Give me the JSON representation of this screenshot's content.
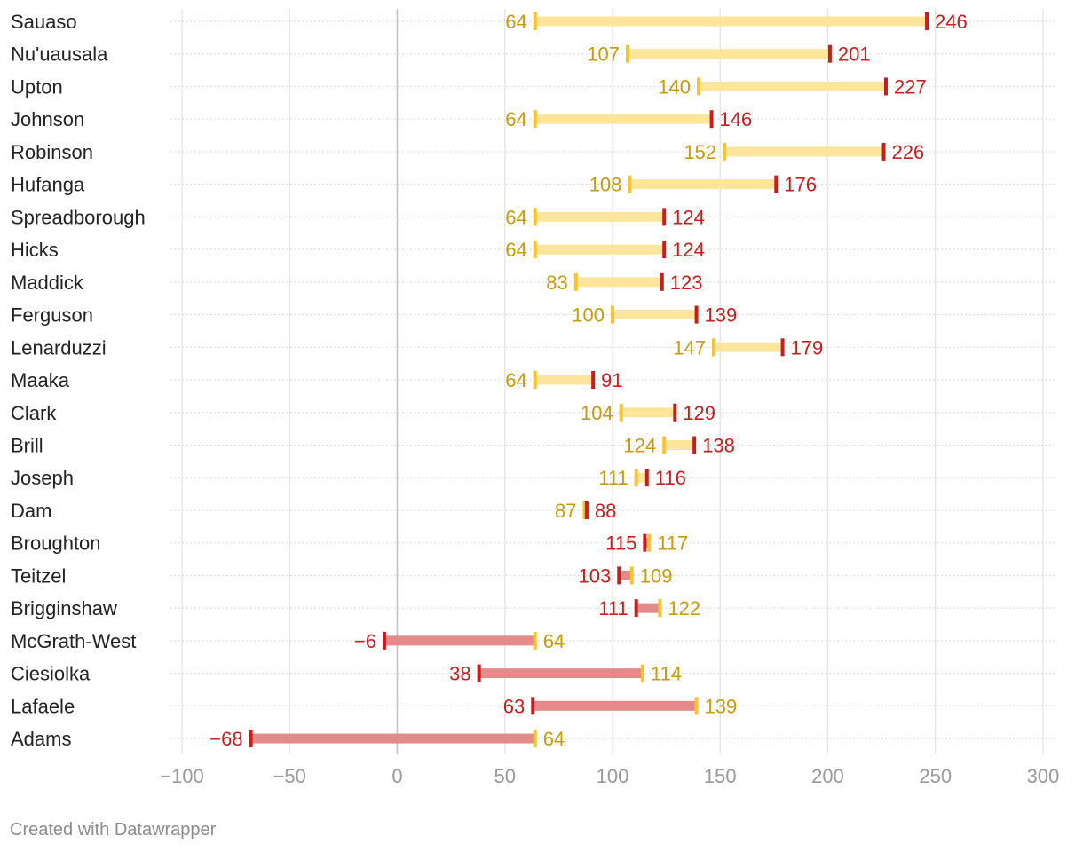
{
  "chart_data": {
    "type": "range",
    "title": "",
    "xlabel": "",
    "ylabel": "",
    "xlim": [
      -100,
      300
    ],
    "xticks": [
      -100,
      -50,
      0,
      50,
      100,
      150,
      200,
      250,
      300
    ],
    "xtick_labels": [
      "−100",
      "−50",
      "0",
      "50",
      "100",
      "150",
      "200",
      "250",
      "300"
    ],
    "grid": true,
    "colors": {
      "start": "#f7c331",
      "end": "#c71e1d",
      "start_text": "#c79b0f",
      "end_text": "#c71e1d",
      "bar_increase": "#fde69b",
      "bar_decrease": "#e58a8a"
    },
    "rows": [
      {
        "label": "Sauaso",
        "start": 64,
        "end": 246,
        "start_label": "64",
        "end_label": "246"
      },
      {
        "label": "Nu'uausala",
        "start": 107,
        "end": 201,
        "start_label": "107",
        "end_label": "201"
      },
      {
        "label": "Upton",
        "start": 140,
        "end": 227,
        "start_label": "140",
        "end_label": "227"
      },
      {
        "label": "Johnson",
        "start": 64,
        "end": 146,
        "start_label": "64",
        "end_label": "146"
      },
      {
        "label": "Robinson",
        "start": 152,
        "end": 226,
        "start_label": "152",
        "end_label": "226"
      },
      {
        "label": "Hufanga",
        "start": 108,
        "end": 176,
        "start_label": "108",
        "end_label": "176"
      },
      {
        "label": "Spreadborough",
        "start": 64,
        "end": 124,
        "start_label": "64",
        "end_label": "124"
      },
      {
        "label": "Hicks",
        "start": 64,
        "end": 124,
        "start_label": "64",
        "end_label": "124"
      },
      {
        "label": "Maddick",
        "start": 83,
        "end": 123,
        "start_label": "83",
        "end_label": "123"
      },
      {
        "label": "Ferguson",
        "start": 100,
        "end": 139,
        "start_label": "100",
        "end_label": "139"
      },
      {
        "label": "Lenarduzzi",
        "start": 147,
        "end": 179,
        "start_label": "147",
        "end_label": "179"
      },
      {
        "label": "Maaka",
        "start": 64,
        "end": 91,
        "start_label": "64",
        "end_label": "91"
      },
      {
        "label": "Clark",
        "start": 104,
        "end": 129,
        "start_label": "104",
        "end_label": "129"
      },
      {
        "label": "Brill",
        "start": 124,
        "end": 138,
        "start_label": "124",
        "end_label": "138"
      },
      {
        "label": "Joseph",
        "start": 111,
        "end": 116,
        "start_label": "111",
        "end_label": "116"
      },
      {
        "label": "Dam",
        "start": 87,
        "end": 88,
        "start_label": "87",
        "end_label": "88"
      },
      {
        "label": "Broughton",
        "start": 117,
        "end": 115,
        "start_label": "117",
        "end_label": "115"
      },
      {
        "label": "Teitzel",
        "start": 109,
        "end": 103,
        "start_label": "109",
        "end_label": "103"
      },
      {
        "label": "Brigginshaw",
        "start": 122,
        "end": 111,
        "start_label": "122",
        "end_label": "111"
      },
      {
        "label": "McGrath-West",
        "start": 64,
        "end": -6,
        "start_label": "64",
        "end_label": "−6"
      },
      {
        "label": "Ciesiolka",
        "start": 114,
        "end": 38,
        "start_label": "114",
        "end_label": "38"
      },
      {
        "label": "Lafaele",
        "start": 139,
        "end": 63,
        "start_label": "139",
        "end_label": "63"
      },
      {
        "label": "Adams",
        "start": 64,
        "end": -68,
        "start_label": "64",
        "end_label": "−68"
      }
    ]
  },
  "footer": {
    "credit": "Created with Datawrapper"
  }
}
